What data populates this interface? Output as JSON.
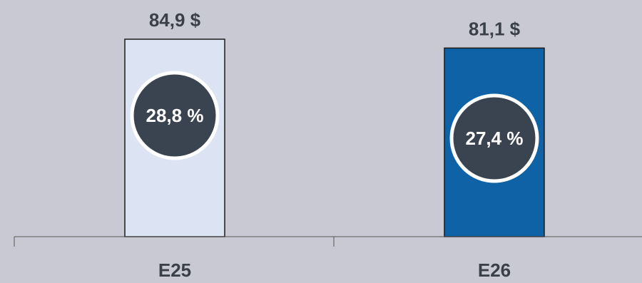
{
  "chart_data": {
    "type": "bar",
    "categories": [
      "E25",
      "E26"
    ],
    "values": [
      84.9,
      81.1
    ],
    "value_labels": [
      "84,9 $",
      "81,1 $"
    ],
    "badges": [
      {
        "value": 28.8,
        "label": "28,8 %"
      },
      {
        "value": 27.4,
        "label": "27,4 %"
      }
    ],
    "title": "",
    "xlabel": "",
    "ylabel": "",
    "grid": false,
    "legend": "none",
    "colors": {
      "background": "#c9c9d3",
      "bars": [
        "#dce3f3",
        "#0f62a6"
      ],
      "bar_outline": "#1a1a1a",
      "badge_fill": "#3a4350",
      "badge_stroke": "#ffffff",
      "text": "#3a3f48",
      "axis": "#555555"
    }
  }
}
